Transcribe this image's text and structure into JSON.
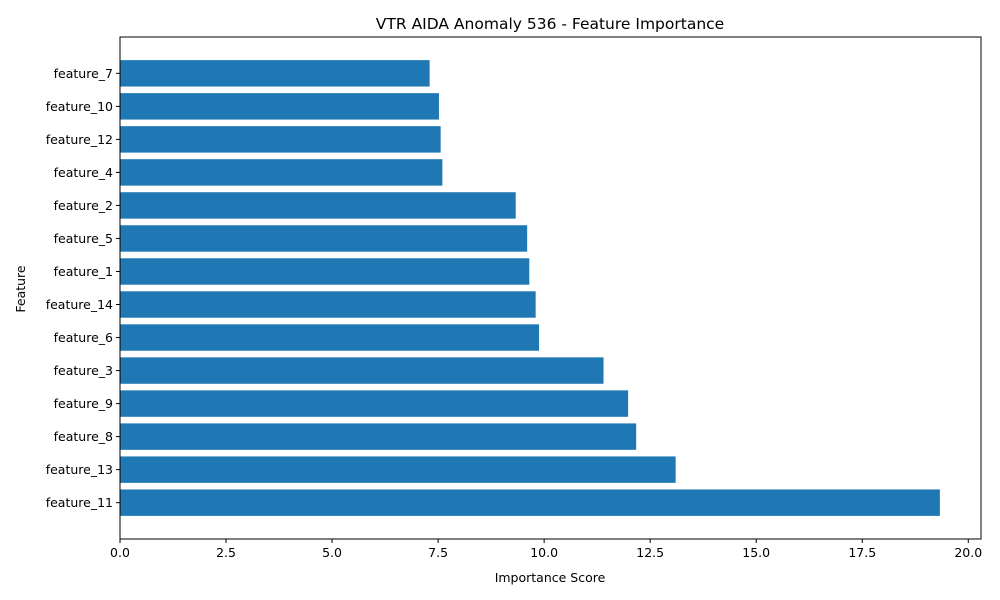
{
  "chart_data": {
    "type": "bar",
    "orientation": "horizontal",
    "title": "VTR AIDA Anomaly 536 - Feature Importance",
    "xlabel": "Importance Score",
    "ylabel": "Feature",
    "xlim": [
      0,
      20.3
    ],
    "xticks": [
      0,
      2.5,
      5,
      7.5,
      10,
      12.5,
      15,
      17.5,
      20
    ],
    "xtick_labels": [
      "0.0",
      "2.5",
      "5.0",
      "7.5",
      "10.0",
      "12.5",
      "15.0",
      "17.5",
      "20.0"
    ],
    "categories": [
      "feature_7",
      "feature_10",
      "feature_12",
      "feature_4",
      "feature_2",
      "feature_5",
      "feature_1",
      "feature_14",
      "feature_6",
      "feature_3",
      "feature_9",
      "feature_8",
      "feature_13",
      "feature_11"
    ],
    "values": [
      7.3,
      7.52,
      7.56,
      7.6,
      9.33,
      9.6,
      9.65,
      9.8,
      9.88,
      11.4,
      11.98,
      12.17,
      13.1,
      19.33
    ],
    "grid": false,
    "bar_color": "#1f77b4"
  }
}
